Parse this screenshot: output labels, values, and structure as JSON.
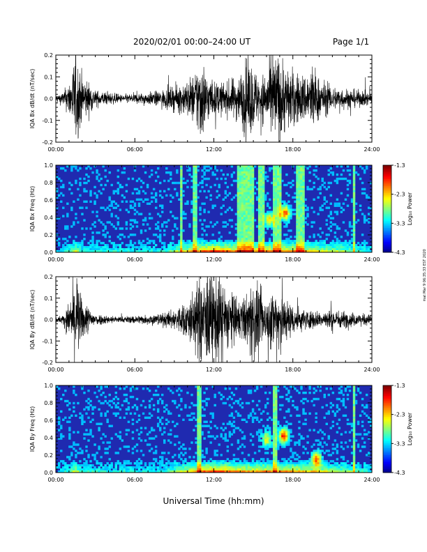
{
  "header": {
    "title": "2020/02/01  00:00–24:00 UT",
    "page": "Page 1/1"
  },
  "footer": {
    "xlabel": "Universal Time (hh:mm)",
    "side_text": "mat  Mar  9  06:35:33  EST  2020"
  },
  "colors": {
    "line": "#000000",
    "spectrogram_background": "#1f2ab0"
  },
  "chart_data": [
    {
      "type": "line",
      "ylabel": "IQA Bx dB/dt (nT/sec)",
      "xlim": [
        0,
        24
      ],
      "ylim": [
        -0.2,
        0.2
      ],
      "yticks": [
        "0.2",
        "0.1",
        "0.0",
        "-0.1",
        "-0.2"
      ],
      "xticks": [
        "00:00",
        "06:00",
        "12:00",
        "18:00",
        "24:00"
      ],
      "envelope": {
        "x": [
          0,
          0.5,
          1,
          1.5,
          2,
          3,
          4,
          5,
          6,
          7,
          8,
          9,
          10,
          10.5,
          11,
          11.5,
          12,
          13,
          14,
          14.5,
          15,
          15.5,
          16,
          16.5,
          17,
          17.5,
          18,
          18.5,
          19,
          19.5,
          20,
          21,
          22,
          23,
          24
        ],
        "y": [
          0.02,
          0.03,
          0.08,
          0.22,
          0.12,
          0.04,
          0.03,
          0.02,
          0.025,
          0.03,
          0.04,
          0.06,
          0.09,
          0.12,
          0.22,
          0.12,
          0.08,
          0.08,
          0.12,
          0.2,
          0.16,
          0.1,
          0.14,
          0.22,
          0.22,
          0.16,
          0.14,
          0.12,
          0.12,
          0.18,
          0.1,
          0.06,
          0.05,
          0.04,
          0.03
        ]
      }
    },
    {
      "type": "heatmap",
      "ylabel": "IQA Bx Freq (Hz)",
      "xlim": [
        0,
        24
      ],
      "ylim": [
        0.0,
        1.0
      ],
      "yticks": [
        "1.0",
        "0.8",
        "0.6",
        "0.4",
        "0.2",
        "0.0"
      ],
      "xticks": [
        "00:00",
        "06:00",
        "12:00",
        "18:00",
        "24:00"
      ],
      "colorbar": {
        "label": "Log₁₀ Power",
        "ticks": [
          "-1.3",
          "-2.3",
          "-3.3",
          "-4.3"
        ],
        "range": [
          -4.3,
          -1.3
        ]
      },
      "vertical_bands": [
        {
          "t": 9.5,
          "width": 0.12
        },
        {
          "t": 10.6,
          "width": 0.15
        },
        {
          "t": 14.1,
          "width": 0.35
        },
        {
          "t": 14.7,
          "width": 0.35
        },
        {
          "t": 15.6,
          "width": 0.25
        },
        {
          "t": 16.6,
          "width": 0.2
        },
        {
          "t": 17.0,
          "width": 0.18
        },
        {
          "t": 18.6,
          "width": 0.3
        },
        {
          "t": 22.6,
          "width": 0.1
        }
      ],
      "blobs": [
        {
          "t": 16.2,
          "f": 0.38,
          "intensity": 0.4
        },
        {
          "t": 17.4,
          "f": 0.45,
          "intensity": 0.55
        }
      ]
    },
    {
      "type": "line",
      "ylabel": "IQA By dB/dt (nT/sec)",
      "xlim": [
        0,
        24
      ],
      "ylim": [
        -0.2,
        0.2
      ],
      "yticks": [
        "0.2",
        "0.1",
        "0.0",
        "-0.1",
        "-0.2"
      ],
      "xticks": [
        "00:00",
        "06:00",
        "12:00",
        "18:00",
        "24:00"
      ],
      "envelope": {
        "x": [
          0,
          0.5,
          1,
          1.5,
          2,
          3,
          4,
          5,
          6,
          7,
          8,
          9,
          10,
          10.5,
          11,
          11.5,
          12,
          12.5,
          13,
          13.5,
          14,
          14.5,
          15,
          15.5,
          16,
          16.5,
          17,
          17.5,
          18,
          18.5,
          19,
          20,
          21,
          22,
          23,
          24
        ],
        "y": [
          0.015,
          0.02,
          0.08,
          0.22,
          0.1,
          0.03,
          0.02,
          0.015,
          0.02,
          0.025,
          0.03,
          0.05,
          0.1,
          0.15,
          0.22,
          0.22,
          0.22,
          0.22,
          0.16,
          0.12,
          0.1,
          0.12,
          0.22,
          0.14,
          0.1,
          0.16,
          0.2,
          0.1,
          0.08,
          0.06,
          0.05,
          0.04,
          0.05,
          0.04,
          0.03,
          0.025
        ]
      }
    },
    {
      "type": "heatmap",
      "ylabel": "IQA By Freq (Hz)",
      "xlim": [
        0,
        24
      ],
      "ylim": [
        0.0,
        1.0
      ],
      "yticks": [
        "1.0",
        "0.8",
        "0.6",
        "0.4",
        "0.2",
        "0.0"
      ],
      "xticks": [
        "00:00",
        "06:00",
        "12:00",
        "18:00",
        "24:00"
      ],
      "colorbar": {
        "label": "Log₁₀ Power",
        "ticks": [
          "-1.3",
          "-2.3",
          "-3.3",
          "-4.3"
        ],
        "range": [
          -4.3,
          -1.3
        ]
      },
      "vertical_bands": [
        {
          "t": 10.9,
          "width": 0.1
        },
        {
          "t": 16.6,
          "width": 0.12
        },
        {
          "t": 22.6,
          "width": 0.1
        }
      ],
      "blobs": [
        {
          "t": 16.0,
          "f": 0.38,
          "intensity": 0.35
        },
        {
          "t": 17.3,
          "f": 0.42,
          "intensity": 0.6
        },
        {
          "t": 19.8,
          "f": 0.15,
          "intensity": 0.5
        }
      ]
    }
  ]
}
